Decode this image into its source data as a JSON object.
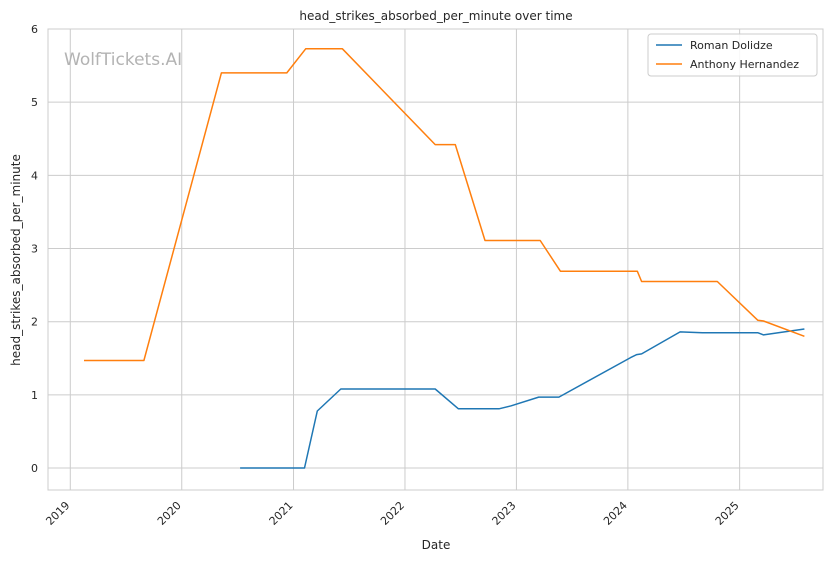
{
  "chart_data": {
    "type": "line",
    "title": "head_strikes_absorbed_per_minute over time",
    "xlabel": "Date",
    "ylabel": "head_strikes_absorbed_per_minute",
    "watermark": "WolfTickets.AI",
    "xlim": [
      "2018-10-20",
      "2025-10-01"
    ],
    "ylim": [
      -0.3,
      6
    ],
    "x_ticks": [
      "2019",
      "2020",
      "2021",
      "2022",
      "2023",
      "2024",
      "2025"
    ],
    "y_ticks": [
      "0",
      "1",
      "2",
      "3",
      "4",
      "5",
      "6"
    ],
    "grid": true,
    "legend_position": "top-right",
    "series": [
      {
        "name": "Roman Dolidze",
        "color": "#1f77b4",
        "points": [
          [
            "2020-07-10",
            0.0
          ],
          [
            "2021-02-06",
            0.0
          ],
          [
            "2021-03-20",
            0.78
          ],
          [
            "2021-06-05",
            1.08
          ],
          [
            "2022-04-10",
            1.08
          ],
          [
            "2022-06-25",
            0.81
          ],
          [
            "2022-11-05",
            0.81
          ],
          [
            "2022-12-15",
            0.85
          ],
          [
            "2023-03-15",
            0.97
          ],
          [
            "2023-05-20",
            0.97
          ],
          [
            "2024-01-10",
            1.51
          ],
          [
            "2024-01-30",
            1.55
          ],
          [
            "2024-02-15",
            1.56
          ],
          [
            "2024-06-20",
            1.86
          ],
          [
            "2024-09-01",
            1.85
          ],
          [
            "2025-03-01",
            1.85
          ],
          [
            "2025-03-20",
            1.82
          ],
          [
            "2025-08-01",
            1.9
          ]
        ]
      },
      {
        "name": "Anthony Hernandez",
        "color": "#ff7f0e",
        "points": [
          [
            "2019-02-15",
            1.47
          ],
          [
            "2019-08-30",
            1.47
          ],
          [
            "2020-05-10",
            5.4
          ],
          [
            "2020-12-10",
            5.4
          ],
          [
            "2021-02-10",
            5.73
          ],
          [
            "2021-06-10",
            5.73
          ],
          [
            "2022-04-10",
            4.42
          ],
          [
            "2022-06-15",
            4.42
          ],
          [
            "2022-09-20",
            3.11
          ],
          [
            "2023-03-20",
            3.11
          ],
          [
            "2023-05-25",
            2.69
          ],
          [
            "2024-02-01",
            2.69
          ],
          [
            "2024-02-15",
            2.55
          ],
          [
            "2024-10-20",
            2.55
          ],
          [
            "2025-03-01",
            2.02
          ],
          [
            "2025-03-20",
            2.01
          ],
          [
            "2025-08-01",
            1.8
          ]
        ]
      }
    ]
  }
}
